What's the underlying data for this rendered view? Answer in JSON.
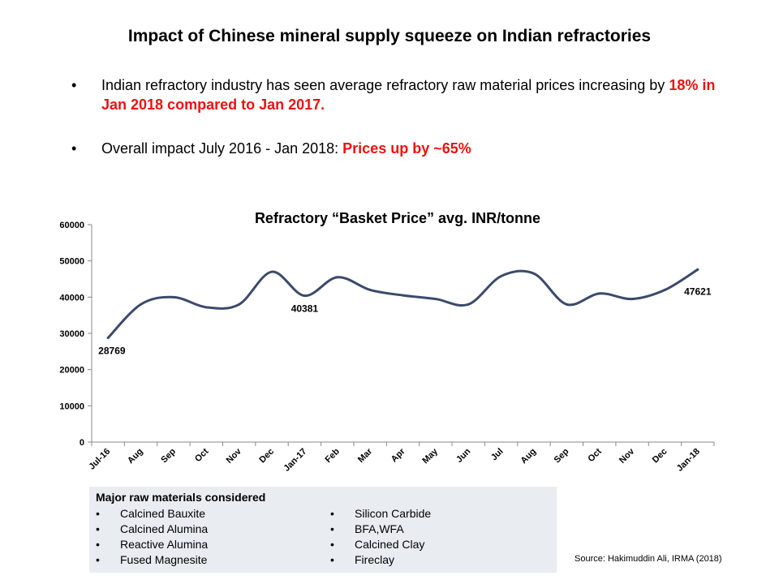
{
  "slide": {
    "title": "Impact of Chinese mineral supply squeeze on Indian refractories",
    "bullets": [
      {
        "symbol": "•",
        "text": "Indian refractory industry has seen average refractory raw material prices increasing by ",
        "highlight": "18% in Jan 2018 compared to Jan 2017."
      },
      {
        "symbol": "•",
        "text": "Overall impact  July 2016 - Jan 2018: ",
        "highlight": "Prices up by ~65%"
      }
    ],
    "highlight_color": "#ee1111"
  },
  "chart_data": {
    "type": "line",
    "title": "Refractory “Basket Price” avg. INR/tonne",
    "xlabel": "",
    "ylabel": "",
    "categories": [
      "Jul-16",
      "Aug",
      "Sep",
      "Oct",
      "Nov",
      "Dec",
      "Jan-17",
      "Feb",
      "Mar",
      "Apr",
      "May",
      "Jun",
      "Jul",
      "Aug",
      "Sep",
      "Oct",
      "Nov",
      "Dec",
      "Jan-18"
    ],
    "series": [
      {
        "name": "",
        "color": "#3b4a6b",
        "values": [
          28769,
          38000,
          40000,
          37200,
          38000,
          47000,
          40381,
          45500,
          42000,
          40500,
          39500,
          38000,
          45800,
          46500,
          38000,
          41000,
          39500,
          42000,
          47621
        ]
      }
    ],
    "data_labels": [
      {
        "index": 0,
        "text": "28769"
      },
      {
        "index": 6,
        "text": "40381"
      },
      {
        "index": 18,
        "text": "47621"
      }
    ],
    "ylim": [
      0,
      60000
    ],
    "yticks": [
      0,
      10000,
      20000,
      30000,
      40000,
      50000,
      60000
    ],
    "grid": false,
    "legend": "none"
  },
  "materials": {
    "title": "Major raw materials considered",
    "bullet_symbol": "•",
    "left": [
      "Calcined Bauxite",
      "Calcined Alumina",
      "Reactive Alumina",
      "Fused Magnesite"
    ],
    "right": [
      "Silicon Carbide",
      "BFA,WFA",
      "Calcined Clay",
      "Fireclay"
    ]
  },
  "source": "Source: Hakimuddin Ali, IRMA  (2018)"
}
